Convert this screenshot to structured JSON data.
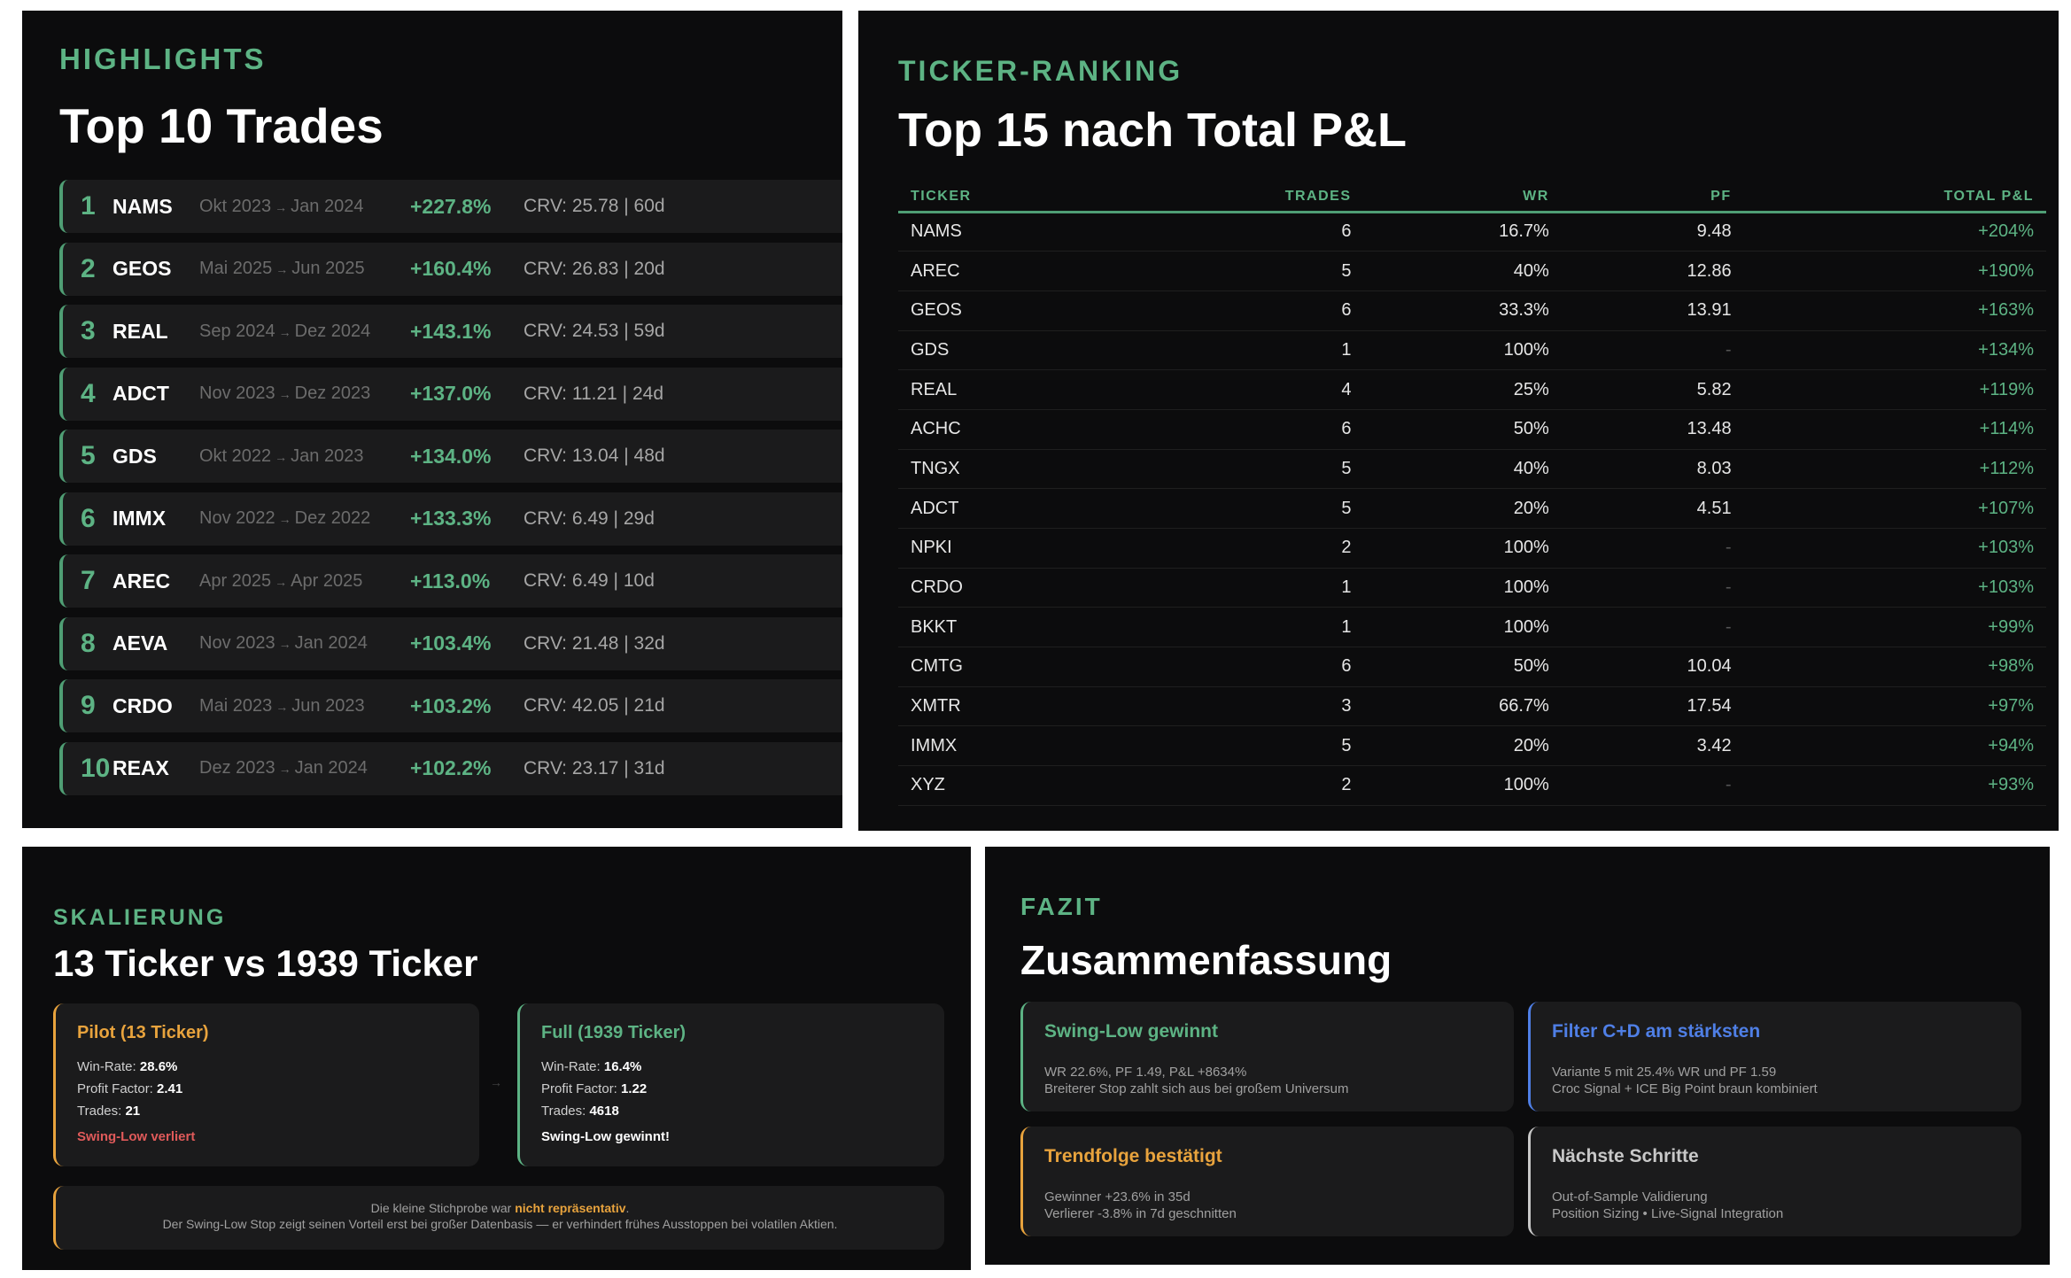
{
  "highlights": {
    "kicker": "HIGHLIGHTS",
    "title": "Top 10 Trades",
    "arrow": "→",
    "trades": [
      {
        "rank": "1",
        "ticker": "NAMS",
        "from": "Okt 2023",
        "to": "Jan 2024",
        "pct": "+227.8%",
        "crv": "CRV: 25.78 | 60d"
      },
      {
        "rank": "2",
        "ticker": "GEOS",
        "from": "Mai 2025",
        "to": "Jun 2025",
        "pct": "+160.4%",
        "crv": "CRV: 26.83 | 20d"
      },
      {
        "rank": "3",
        "ticker": "REAL",
        "from": "Sep 2024",
        "to": "Dez 2024",
        "pct": "+143.1%",
        "crv": "CRV: 24.53 | 59d"
      },
      {
        "rank": "4",
        "ticker": "ADCT",
        "from": "Nov 2023",
        "to": "Dez 2023",
        "pct": "+137.0%",
        "crv": "CRV: 11.21 | 24d"
      },
      {
        "rank": "5",
        "ticker": "GDS",
        "from": "Okt 2022",
        "to": "Jan 2023",
        "pct": "+134.0%",
        "crv": "CRV: 13.04 | 48d"
      },
      {
        "rank": "6",
        "ticker": "IMMX",
        "from": "Nov 2022",
        "to": "Dez 2022",
        "pct": "+133.3%",
        "crv": "CRV: 6.49 | 29d"
      },
      {
        "rank": "7",
        "ticker": "AREC",
        "from": "Apr 2025",
        "to": "Apr 2025",
        "pct": "+113.0%",
        "crv": "CRV: 6.49 | 10d"
      },
      {
        "rank": "8",
        "ticker": "AEVA",
        "from": "Nov 2023",
        "to": "Jan 2024",
        "pct": "+103.4%",
        "crv": "CRV: 21.48 | 32d"
      },
      {
        "rank": "9",
        "ticker": "CRDO",
        "from": "Mai 2023",
        "to": "Jun 2023",
        "pct": "+103.2%",
        "crv": "CRV: 42.05 | 21d"
      },
      {
        "rank": "10",
        "ticker": "REAX",
        "from": "Dez 2023",
        "to": "Jan 2024",
        "pct": "+102.2%",
        "crv": "CRV: 23.17 | 31d"
      }
    ]
  },
  "ranking": {
    "kicker": "TICKER-RANKING",
    "title": "Top 15 nach Total P&L",
    "columns": [
      "TICKER",
      "TRADES",
      "WR",
      "PF",
      "TOTAL P&L"
    ],
    "rows": [
      [
        "NAMS",
        "6",
        "16.7%",
        "9.48",
        "+204%"
      ],
      [
        "AREC",
        "5",
        "40%",
        "12.86",
        "+190%"
      ],
      [
        "GEOS",
        "6",
        "33.3%",
        "13.91",
        "+163%"
      ],
      [
        "GDS",
        "1",
        "100%",
        "-",
        "+134%"
      ],
      [
        "REAL",
        "4",
        "25%",
        "5.82",
        "+119%"
      ],
      [
        "ACHC",
        "6",
        "50%",
        "13.48",
        "+114%"
      ],
      [
        "TNGX",
        "5",
        "40%",
        "8.03",
        "+112%"
      ],
      [
        "ADCT",
        "5",
        "20%",
        "4.51",
        "+107%"
      ],
      [
        "NPKI",
        "2",
        "100%",
        "-",
        "+103%"
      ],
      [
        "CRDO",
        "1",
        "100%",
        "-",
        "+103%"
      ],
      [
        "BKKT",
        "1",
        "100%",
        "-",
        "+99%"
      ],
      [
        "CMTG",
        "6",
        "50%",
        "10.04",
        "+98%"
      ],
      [
        "XMTR",
        "3",
        "66.7%",
        "17.54",
        "+97%"
      ],
      [
        "IMMX",
        "5",
        "20%",
        "3.42",
        "+94%"
      ],
      [
        "XYZ",
        "2",
        "100%",
        "-",
        "+93%"
      ]
    ]
  },
  "scaling": {
    "kicker": "SKALIERUNG",
    "title": "13 Ticker vs 1939 Ticker",
    "arrow": "→",
    "pilot": {
      "title": "Pilot (13 Ticker)",
      "wr_label": "Win-Rate:",
      "wr": "28.6%",
      "pf_label": "Profit Factor:",
      "pf": "2.41",
      "tr_label": "Trades:",
      "tr": "21",
      "verdict": "Swing-Low verliert"
    },
    "full": {
      "title": "Full (1939 Ticker)",
      "wr_label": "Win-Rate:",
      "wr": "16.4%",
      "pf_label": "Profit Factor:",
      "pf": "1.22",
      "tr_label": "Trades:",
      "tr": "4618",
      "verdict": "Swing-Low gewinnt!"
    },
    "note": {
      "pre": "Die kleine Stichprobe war ",
      "highlight": "nicht repräsentativ",
      "post": ".",
      "line2": "Der Swing-Low Stop zeigt seinen Vorteil erst bei großer Datenbasis — er verhindert frühes Ausstoppen bei volatilen Aktien."
    }
  },
  "fazit": {
    "kicker": "FAZIT",
    "title": "Zusammenfassung",
    "cards": [
      {
        "title": "Swing-Low gewinnt",
        "l1": "WR 22.6%, PF 1.49, P&L +8634%",
        "l2": "Breiterer Stop zahlt sich aus bei großem Universum",
        "color": "#5db384"
      },
      {
        "title": "Filter C+D am stärksten",
        "l1": "Variante 5 mit 25.4% WR und PF 1.59",
        "l2": "Croc Signal + ICE Big Point braun kombiniert",
        "color": "#4f7fe6"
      },
      {
        "title": "Trendfolge bestätigt",
        "l1": "Gewinner +23.6% in 35d",
        "l2": "Verlierer -3.8% in 7d geschnitten",
        "color": "#e8a33d"
      },
      {
        "title": "Nächste Schritte",
        "l1": "Out-of-Sample Validierung",
        "l2": "Position Sizing • Live-Signal Integration",
        "color": "#c8c8c8"
      }
    ]
  }
}
